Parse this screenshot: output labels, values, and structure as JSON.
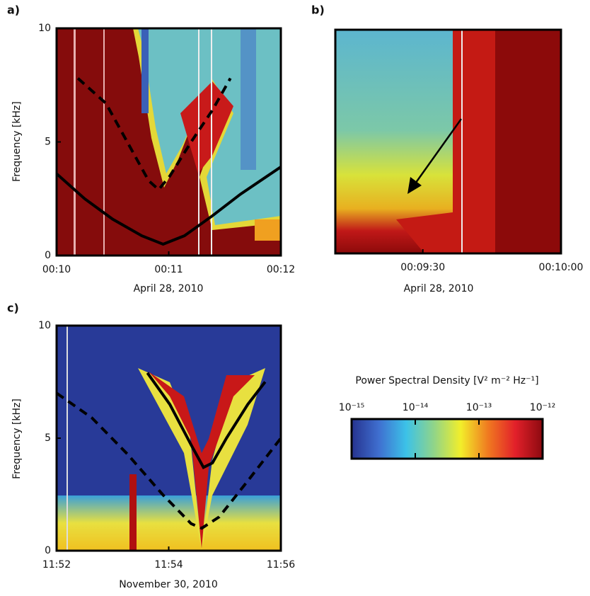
{
  "chart_data": [
    {
      "type": "spectrogram",
      "panel": "a)",
      "xlabel": "April 28, 2010",
      "ylabel": "Frequency [kHz]",
      "xlim": [
        0,
        2
      ],
      "xticks": [
        {
          "value": 0,
          "label": "00:10"
        },
        {
          "value": 1,
          "label": "00:11"
        },
        {
          "value": 2,
          "label": "00:12"
        }
      ],
      "ylim": [
        0,
        10
      ],
      "yticks": [
        0,
        5,
        10
      ],
      "series": [
        {
          "style": "solid",
          "color": "#000000",
          "x": [
            0,
            0.25,
            0.5,
            0.76,
            0.95,
            1.14,
            1.39,
            1.64,
            2.0
          ],
          "values": [
            3.6,
            2.5,
            1.6,
            0.87,
            0.5,
            0.87,
            1.75,
            2.7,
            3.9
          ]
        },
        {
          "style": "dashed",
          "color": "#000000",
          "x": [
            0.19,
            0.44,
            0.63,
            0.82,
            0.91,
            1.01,
            1.2,
            1.39,
            1.55
          ],
          "values": [
            7.8,
            6.7,
            5.0,
            3.3,
            2.9,
            3.5,
            5.0,
            6.4,
            7.8
          ]
        }
      ]
    },
    {
      "type": "spectrogram",
      "panel": "b)",
      "xlabel": "April 28, 2010",
      "xlim": [
        11,
        60
      ],
      "xticks": [
        {
          "value": 30,
          "label": "00:09:30"
        },
        {
          "value": 60,
          "label": "00:10:00"
        }
      ]
    },
    {
      "type": "spectrogram",
      "panel": "c)",
      "xlabel": "November 30, 2010",
      "ylabel": "Frequency [kHz]",
      "xlim": [
        0,
        4
      ],
      "xticks": [
        {
          "value": 0,
          "label": "11:52"
        },
        {
          "value": 2,
          "label": "11:54"
        },
        {
          "value": 4,
          "label": "11:56"
        }
      ],
      "ylim": [
        0,
        10
      ],
      "yticks": [
        0,
        5,
        10
      ],
      "series": [
        {
          "style": "dashed",
          "color": "#000000",
          "x": [
            0,
            0.63,
            1.26,
            1.89,
            2.4,
            2.59,
            2.9,
            3.41,
            4.0
          ],
          "values": [
            7.0,
            5.9,
            4.3,
            2.5,
            1.2,
            1.0,
            1.5,
            3.1,
            5.0
          ]
        },
        {
          "style": "solid",
          "color": "#000000",
          "x": [
            1.62,
            2.02,
            2.4,
            2.62,
            2.78,
            3.03,
            3.41,
            3.72
          ],
          "values": [
            7.9,
            6.5,
            4.7,
            3.7,
            3.9,
            5.0,
            6.5,
            7.5
          ]
        }
      ]
    },
    {
      "type": "colorbar",
      "title": "Power Spectral Density [V² m⁻² Hz⁻¹]",
      "log": true,
      "xlim": [
        1e-15,
        1e-12
      ],
      "xticks": [
        {
          "value": 1e-15,
          "label": "10⁻¹⁵"
        },
        {
          "value": 1e-14,
          "label": "10⁻¹⁴"
        },
        {
          "value": 1e-13,
          "label": "10⁻¹³"
        },
        {
          "value": 1e-12,
          "label": "10⁻¹²"
        }
      ],
      "colors": [
        "#26338f",
        "#3f6fd0",
        "#3cc2e8",
        "#8fd48a",
        "#f2ee2a",
        "#f07a20",
        "#e2202a",
        "#8c0a10"
      ]
    }
  ]
}
